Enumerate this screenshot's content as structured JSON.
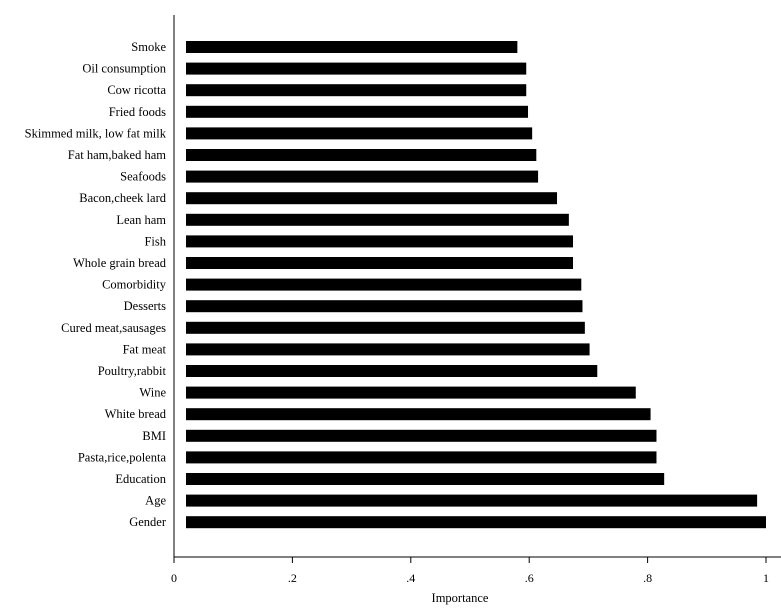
{
  "chart_data": {
    "type": "bar",
    "orientation": "horizontal",
    "xlabel": "Importance",
    "ylabel": "",
    "xlim": [
      0,
      1
    ],
    "xticks": [
      0,
      0.2,
      0.4,
      0.6,
      0.8,
      1
    ],
    "xtick_labels": [
      "0",
      ".2",
      ".4",
      ".6",
      ".8",
      "1"
    ],
    "grid": false,
    "bar_color": "#000000",
    "categories": [
      "Smoke",
      "Oil consumption",
      "Cow ricotta",
      "Fried foods",
      "Skimmed milk, low fat milk",
      "Fat ham,baked ham",
      "Seafoods",
      "Bacon,cheek lard",
      "Lean ham",
      "Fish",
      "Whole grain bread",
      "Comorbidity",
      "Desserts",
      "Cured meat,sausages",
      "Fat meat",
      "Poultry,rabbit",
      "Wine",
      "White bread",
      "BMI",
      "Pasta,rice,polenta",
      "Education",
      "Age",
      "Gender"
    ],
    "values": [
      0.58,
      0.595,
      0.595,
      0.598,
      0.605,
      0.612,
      0.615,
      0.647,
      0.667,
      0.674,
      0.674,
      0.688,
      0.69,
      0.694,
      0.702,
      0.715,
      0.78,
      0.805,
      0.815,
      0.815,
      0.828,
      0.985,
      1.0
    ]
  }
}
